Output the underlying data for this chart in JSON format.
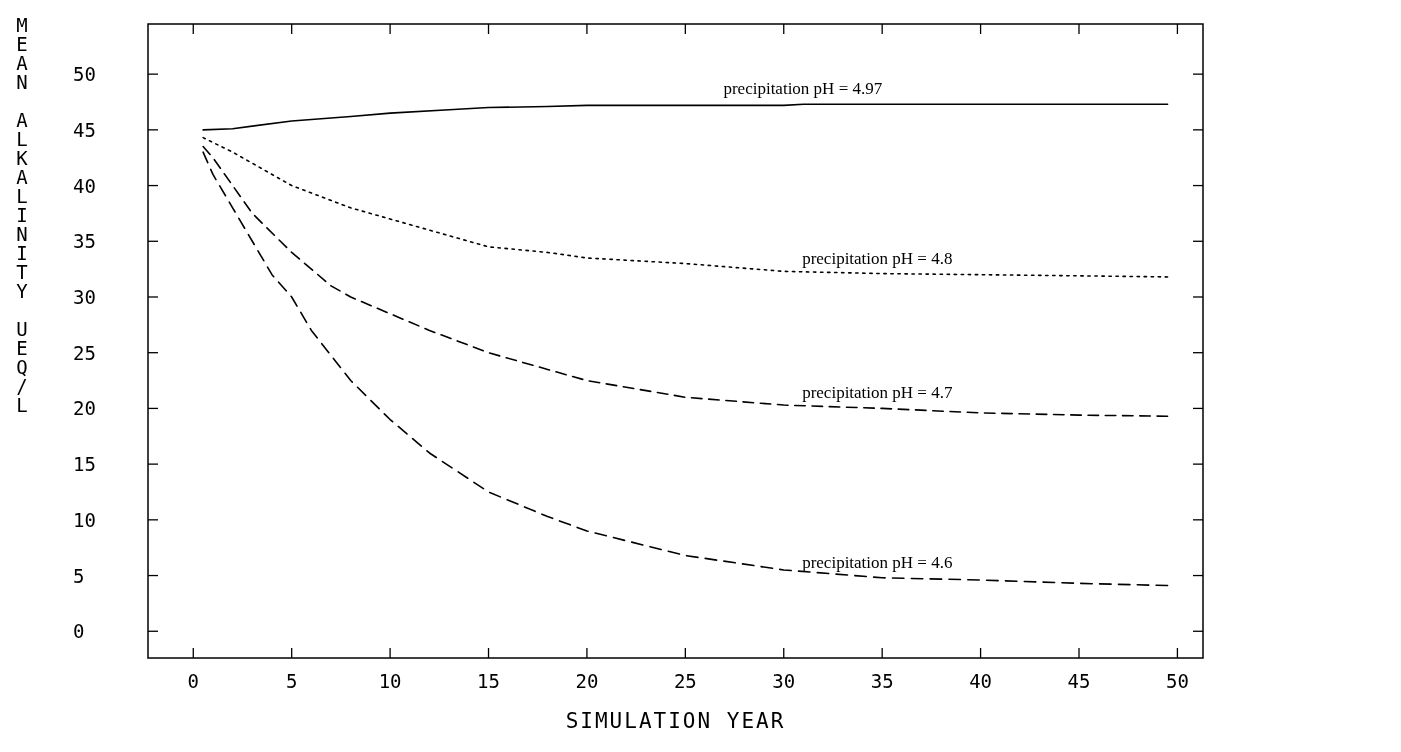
{
  "chart_data": {
    "type": "line",
    "xlabel": "SIMULATION YEAR",
    "ylabel": "MEAN ALKALINITY UEQ/L",
    "xlim": [
      -2.3,
      51.3
    ],
    "ylim": [
      -2.4,
      54.5
    ],
    "xticks": [
      0,
      5,
      10,
      15,
      20,
      25,
      30,
      35,
      40,
      45,
      50
    ],
    "yticks": [
      0,
      5,
      10,
      15,
      20,
      25,
      30,
      35,
      40,
      45,
      50
    ],
    "grid": false,
    "series": [
      {
        "name": "precipitation pH = 4.97",
        "color": "#000000",
        "line_style": "solid",
        "x": [
          0.5,
          2,
          5,
          8,
          10,
          13,
          15,
          18,
          20,
          25,
          30,
          31,
          40,
          49.5
        ],
        "values": [
          45,
          45.1,
          45.8,
          46.2,
          46.5,
          46.8,
          47,
          47.1,
          47.2,
          47.2,
          47.2,
          47.3,
          47.3,
          47.3
        ]
      },
      {
        "name": "precipitation pH = 4.8",
        "color": "#000000",
        "line_style": "dotted",
        "x": [
          0.5,
          2,
          5,
          8,
          10,
          12,
          15,
          18,
          20,
          25,
          30,
          35,
          40,
          45,
          49.5
        ],
        "values": [
          44.3,
          43,
          40,
          38,
          37,
          36,
          34.5,
          34,
          33.5,
          33,
          32.3,
          32.1,
          32,
          31.9,
          31.8
        ]
      },
      {
        "name": "precipitation pH = 4.7",
        "color": "#000000",
        "line_style": "dashed",
        "x": [
          0.5,
          1,
          2,
          3,
          5,
          7,
          8,
          10,
          12,
          15,
          18,
          20,
          25,
          30,
          35,
          40,
          45,
          49.5
        ],
        "values": [
          43.5,
          42.5,
          40,
          37.5,
          34,
          31,
          30,
          28.5,
          27,
          25,
          23.5,
          22.5,
          21,
          20.3,
          20,
          19.6,
          19.4,
          19.3
        ]
      },
      {
        "name": "precipitation pH = 4.6",
        "color": "#000000",
        "line_style": "dashed",
        "x": [
          0.5,
          1,
          2,
          3,
          4,
          5,
          6,
          8,
          10,
          12,
          15,
          18,
          20,
          25,
          30,
          35,
          40,
          45,
          49.5
        ],
        "values": [
          43,
          41,
          38,
          35,
          32,
          30,
          27,
          22.5,
          19,
          16,
          12.5,
          10.3,
          9,
          6.8,
          5.5,
          4.8,
          4.6,
          4.3,
          4.1
        ]
      }
    ]
  }
}
